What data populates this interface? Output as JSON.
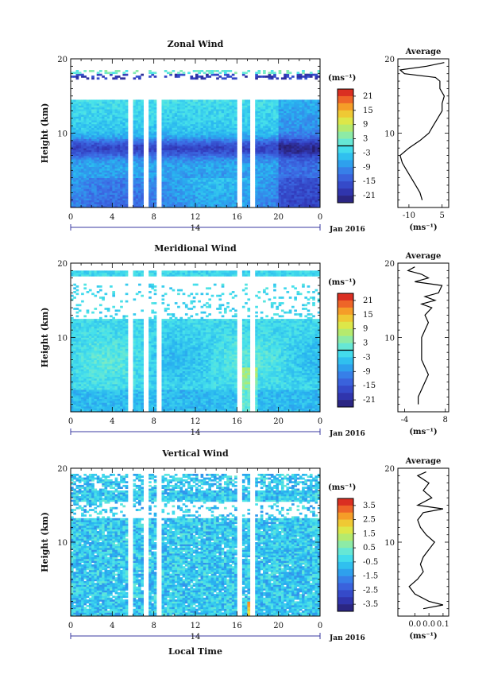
{
  "chart_data": [
    {
      "type": "heatmap",
      "title": "Zonal Wind",
      "ylabel": "Height (km)",
      "ylim": [
        0,
        20
      ],
      "yticks": [
        "10",
        "20"
      ],
      "xlim": [
        0,
        24
      ],
      "xticks": [
        "0",
        "4",
        "8",
        "12",
        "16",
        "20",
        "0"
      ],
      "day_label": "14",
      "date_label": "Jan 2016",
      "colorbar": {
        "unit": "(ms⁻¹)",
        "ticks": [
          "21",
          "15",
          "9",
          "3",
          "-3",
          "-9",
          "-15",
          "-21"
        ],
        "range": [
          -24,
          24
        ],
        "zero_line": 0
      },
      "data_gaps_hours": [
        [
          5.4,
          5.9
        ],
        [
          7.1,
          7.6
        ],
        [
          8.2,
          8.8
        ],
        [
          15.9,
          16.6
        ],
        [
          17.3,
          17.7
        ]
      ],
      "profile": {
        "title": "Average",
        "xticks": [
          "-10",
          "5"
        ],
        "xlim": [
          -15,
          8
        ],
        "xlabel": "(ms⁻¹)",
        "heights_km": [
          1,
          2,
          3,
          4,
          5,
          6,
          7,
          8,
          9,
          10,
          11,
          12,
          13,
          14,
          15,
          16,
          17,
          17.5,
          18,
          18.5,
          19,
          19.5
        ],
        "values": [
          -4,
          -5,
          -7,
          -9,
          -11,
          -13,
          -14,
          -10,
          -5,
          -1,
          1,
          3,
          5,
          5,
          6,
          4,
          4,
          2,
          -12,
          -14,
          -2,
          6
        ]
      }
    },
    {
      "type": "heatmap",
      "title": "Meridional Wind",
      "ylabel": "Height (km)",
      "ylim": [
        0,
        20
      ],
      "yticks": [
        "10",
        "20"
      ],
      "xlim": [
        0,
        24
      ],
      "xticks": [
        "0",
        "4",
        "8",
        "12",
        "16",
        "20",
        "0"
      ],
      "day_label": "14",
      "date_label": "Jan 2016",
      "colorbar": {
        "unit": "(ms⁻¹)",
        "ticks": [
          "21",
          "15",
          "9",
          "3",
          "-3",
          "-9",
          "-15",
          "-21"
        ],
        "range": [
          -24,
          24
        ],
        "zero_line": 0
      },
      "data_gaps_hours": [
        [
          5.4,
          5.9
        ],
        [
          7.1,
          7.6
        ],
        [
          8.2,
          8.8
        ],
        [
          15.9,
          16.6
        ],
        [
          17.3,
          17.7
        ]
      ],
      "profile": {
        "title": "Average",
        "xticks": [
          "-4",
          "8"
        ],
        "xlim": [
          -6,
          9
        ],
        "xlabel": "(ms⁻¹)",
        "heights_km": [
          1,
          2,
          3,
          4,
          5,
          6,
          7,
          8,
          9,
          10,
          11,
          12,
          13,
          14,
          14.5,
          15,
          15.5,
          16,
          17,
          17.5,
          18,
          18.5,
          19,
          19.5
        ],
        "values": [
          0,
          0,
          1,
          2,
          3,
          2,
          1,
          1,
          1,
          1,
          2,
          3,
          2,
          4,
          1,
          5,
          2,
          6,
          7,
          -1,
          3,
          1,
          -3,
          -1
        ]
      }
    },
    {
      "type": "heatmap",
      "title": "Vertical Wind",
      "ylabel": "Height (km)",
      "xlabel": "Local Time",
      "ylim": [
        0,
        20
      ],
      "yticks": [
        "10",
        "20"
      ],
      "xlim": [
        0,
        24
      ],
      "xticks": [
        "0",
        "4",
        "8",
        "12",
        "16",
        "20",
        "0"
      ],
      "day_label": "14",
      "date_label": "Jan 2016",
      "colorbar": {
        "unit": "(ms⁻¹)",
        "ticks": [
          "3.5",
          "2.5",
          "1.5",
          "0.5",
          "-0.5",
          "-1.5",
          "-2.5",
          "-3.5"
        ],
        "range": [
          -4,
          4
        ]
      },
      "data_gaps_hours": [
        [
          5.4,
          5.9
        ],
        [
          7.1,
          7.6
        ],
        [
          8.2,
          8.8
        ],
        [
          15.9,
          16.6
        ],
        [
          17.3,
          17.7
        ]
      ],
      "profile": {
        "title": "Average",
        "xticks": [
          "0.0",
          "0.0",
          "0.1"
        ],
        "xlim": [
          -0.06,
          0.12
        ],
        "xlabel": "(ms⁻¹)",
        "heights_km": [
          1,
          1.5,
          2,
          3,
          4,
          5,
          6,
          7,
          8,
          9,
          10,
          11,
          12,
          13,
          14,
          14.5,
          15,
          16,
          17,
          18,
          19,
          19.5
        ],
        "values": [
          0.03,
          0.1,
          0.05,
          0.0,
          -0.02,
          0.01,
          0.03,
          0.02,
          0.03,
          0.05,
          0.07,
          0.04,
          0.02,
          0.01,
          0.03,
          0.1,
          0.01,
          0.06,
          0.03,
          0.05,
          0.01,
          0.04
        ]
      }
    }
  ]
}
